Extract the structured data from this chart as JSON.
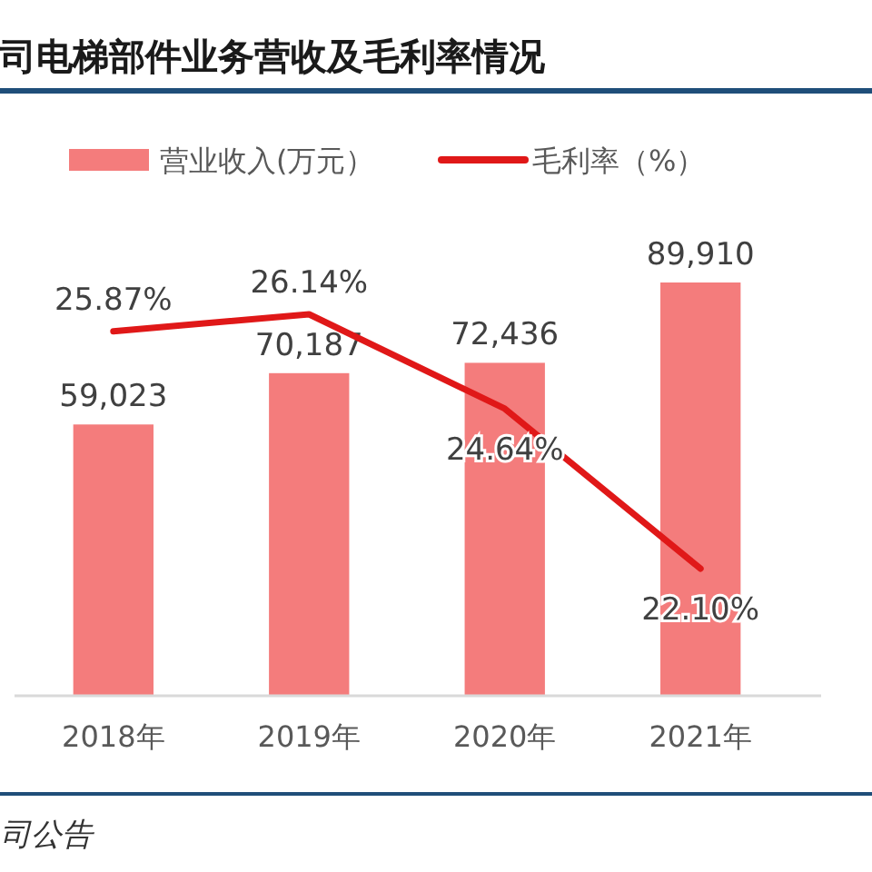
{
  "chart_data": {
    "type": "bar",
    "title": "司电梯部件业务营收及毛利率情况",
    "categories": [
      "2018年",
      "2019年",
      "2020年",
      "2021年"
    ],
    "series": [
      {
        "name": "营业收入(万元）",
        "color": "#f47c7c",
        "values": [
          59023,
          70187,
          72436,
          89910
        ],
        "value_labels": [
          "59,023",
          "70,187",
          "72,436",
          "89,910"
        ]
      },
      {
        "name": "毛利率（%）",
        "type": "line",
        "axis": "y2",
        "color": "#e01818",
        "values": [
          25.87,
          26.14,
          24.64,
          22.1
        ],
        "value_labels": [
          "25.87%",
          "26.14%",
          "24.64%",
          "22.10%"
        ]
      }
    ],
    "tick_labels": "x",
    "legend": "top",
    "annotations": [
      "司公告"
    ]
  }
}
